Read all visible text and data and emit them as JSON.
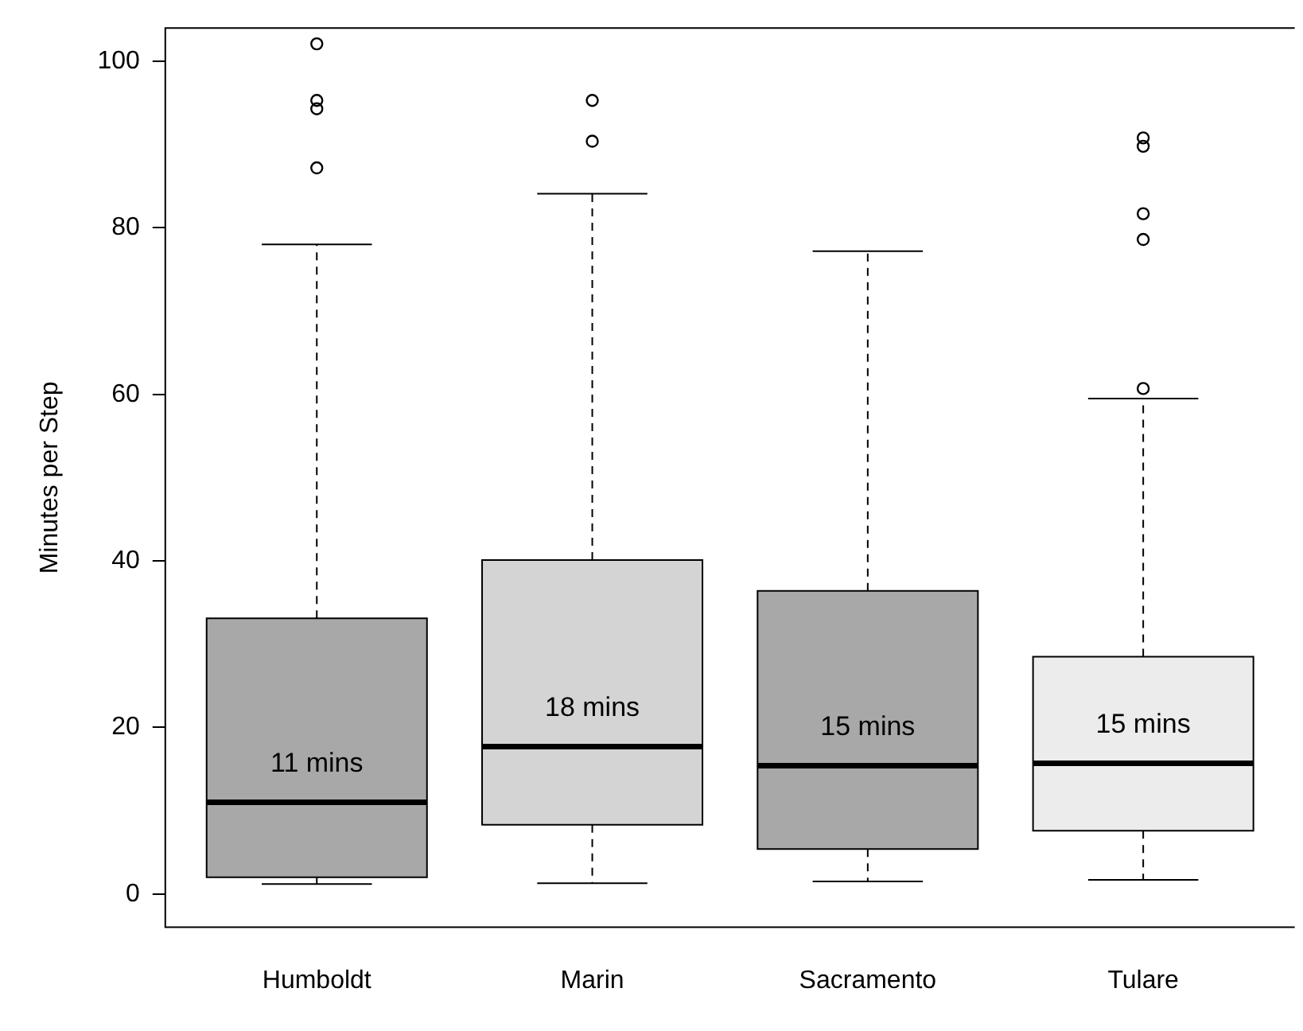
{
  "chart_data": {
    "type": "box",
    "ylabel": "Minutes per Step",
    "categories": [
      "Humboldt",
      "Marin",
      "Sacramento",
      "Tulare"
    ],
    "colors": [
      "#a8a8a8",
      "#d4d4d4",
      "#a8a8a8",
      "#ececec"
    ],
    "boxes": [
      {
        "low": 1.2,
        "q1": 2.0,
        "median": 11.0,
        "q3": 33.1,
        "high": 78.0,
        "outliers": [
          102.1,
          95.3,
          94.3,
          87.2
        ]
      },
      {
        "low": 1.3,
        "q1": 8.3,
        "median": 17.7,
        "q3": 40.1,
        "high": 84.1,
        "outliers": [
          95.3,
          90.4
        ]
      },
      {
        "low": 1.5,
        "q1": 5.4,
        "median": 15.4,
        "q3": 36.4,
        "high": 77.2
      },
      {
        "low": 1.7,
        "q1": 7.6,
        "median": 15.7,
        "q3": 28.5,
        "high": 59.5,
        "outliers": [
          60.7,
          78.6,
          81.7,
          89.8,
          90.8
        ]
      }
    ],
    "annotations": [
      "11 mins",
      "18 mins",
      "15 mins",
      "15 mins"
    ],
    "ylim": [
      -4,
      104
    ],
    "yticks": [
      0,
      20,
      40,
      60,
      80,
      100
    ],
    "marker": "circle",
    "grid": false,
    "legend": false
  }
}
